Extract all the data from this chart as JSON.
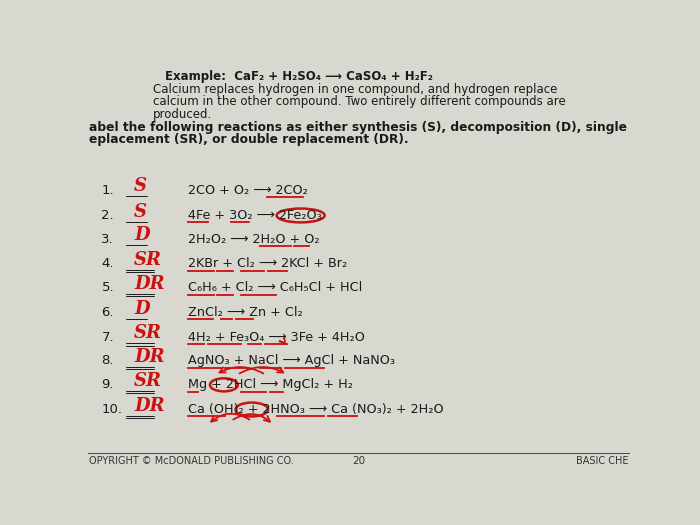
{
  "bg_color": "#d8d8d0",
  "text_color": "#1a1a1a",
  "red_color": "#cc1111",
  "top_line1": "Example:  CaF₂ + H₂SO₄ ⟶ CaSO₄ + H₂F₂",
  "top_line2": "Calcium replaces hydrogen in one compound, and hydrogen replace",
  "top_line3": "calcium in the other compound. Two entirely different compounds are",
  "top_line4": "produced.",
  "inst_line1": "abel the following reactions as either synthesis (S), decomposition (D), single",
  "inst_line2": "eplacement (SR), or double replacement (DR).",
  "reactions": [
    {
      "num": "1.",
      "answer": "S",
      "eq": "2CO + O₂ ⟶ 2CO₂"
    },
    {
      "num": "2.",
      "answer": "S",
      "eq": "4Fe + 3O₂ ⟶ 2Fe₂O₃"
    },
    {
      "num": "3.",
      "answer": "D",
      "eq": "2H₂O₂ ⟶ 2H₂O + O₂"
    },
    {
      "num": "4.",
      "answer": "SR",
      "eq": "2KBr + Cl₂ ⟶ 2KCl + Br₂"
    },
    {
      "num": "5.",
      "answer": "DR",
      "eq": "C₆H₆ + Cl₂ ⟶ C₆H₅Cl + HCl"
    },
    {
      "num": "6.",
      "answer": "D",
      "eq": "ZnCl₂ ⟶ Zn + Cl₂"
    },
    {
      "num": "7.",
      "answer": "SR",
      "eq": "4H₂ + Fe₃O₄ ⟶ 3Fe + 4H₂O"
    },
    {
      "num": "8.",
      "answer": "DR",
      "eq": "AgNO₃ + NaCl ⟶ AgCl + NaNO₃"
    },
    {
      "num": "9.",
      "answer": "SR",
      "eq": "Mg + 2HCl ⟶ MgCl₂ + H₂"
    },
    {
      "num": "10.",
      "answer": "DR",
      "eq": "Ca (OH)₂ + 2HNO₃ ⟶ Ca (NO₃)₂ + 2H₂O"
    }
  ],
  "footer_left": "OPYRIGHT © McDONALD PUBLISHING CO.",
  "footer_center": "20",
  "footer_right": "BASIC CHE"
}
